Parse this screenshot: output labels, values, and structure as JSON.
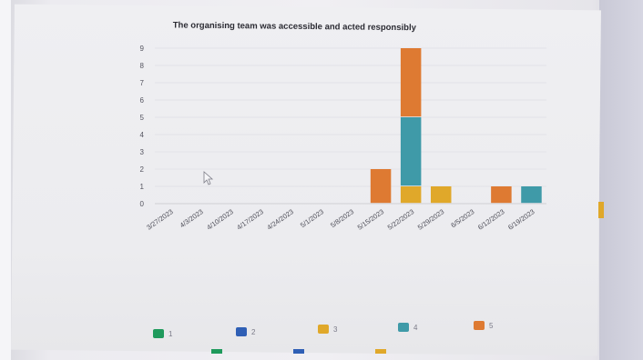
{
  "chart_data": {
    "type": "bar",
    "stacked": true,
    "title": "The organising team was accessible and acted responsibly",
    "xlabel": "",
    "ylabel": "",
    "ylim": [
      0,
      9
    ],
    "yticks": [
      0,
      1,
      2,
      3,
      4,
      5,
      6,
      7,
      8,
      9
    ],
    "grid": true,
    "legend_position": "bottom",
    "categories": [
      "3/27/2023",
      "4/3/2023",
      "4/10/2023",
      "4/17/2023",
      "4/24/2023",
      "5/1/2023",
      "5/8/2023",
      "5/15/2023",
      "5/22/2023",
      "5/29/2023",
      "6/5/2023",
      "6/12/2023",
      "6/19/2023"
    ],
    "series": [
      {
        "name": "1",
        "color": "#1f9a5c",
        "values": [
          0,
          0,
          0,
          0,
          0,
          0,
          0,
          0,
          0,
          0,
          0,
          0,
          0
        ]
      },
      {
        "name": "2",
        "color": "#2f5fb5",
        "values": [
          0,
          0,
          0,
          0,
          0,
          0,
          0,
          0,
          0,
          0,
          0,
          0,
          0
        ]
      },
      {
        "name": "3",
        "color": "#e0a82a",
        "values": [
          0,
          0,
          0,
          0,
          0,
          0,
          0,
          0,
          1,
          1,
          0,
          0,
          0
        ]
      },
      {
        "name": "4",
        "color": "#3f9aa8",
        "values": [
          0,
          0,
          0,
          0,
          0,
          0,
          0,
          0,
          4,
          0,
          0,
          0,
          1
        ]
      },
      {
        "name": "5",
        "color": "#de7a32",
        "values": [
          0,
          0,
          0,
          0,
          0,
          0,
          0,
          2,
          4,
          0,
          0,
          1,
          0
        ]
      }
    ]
  }
}
